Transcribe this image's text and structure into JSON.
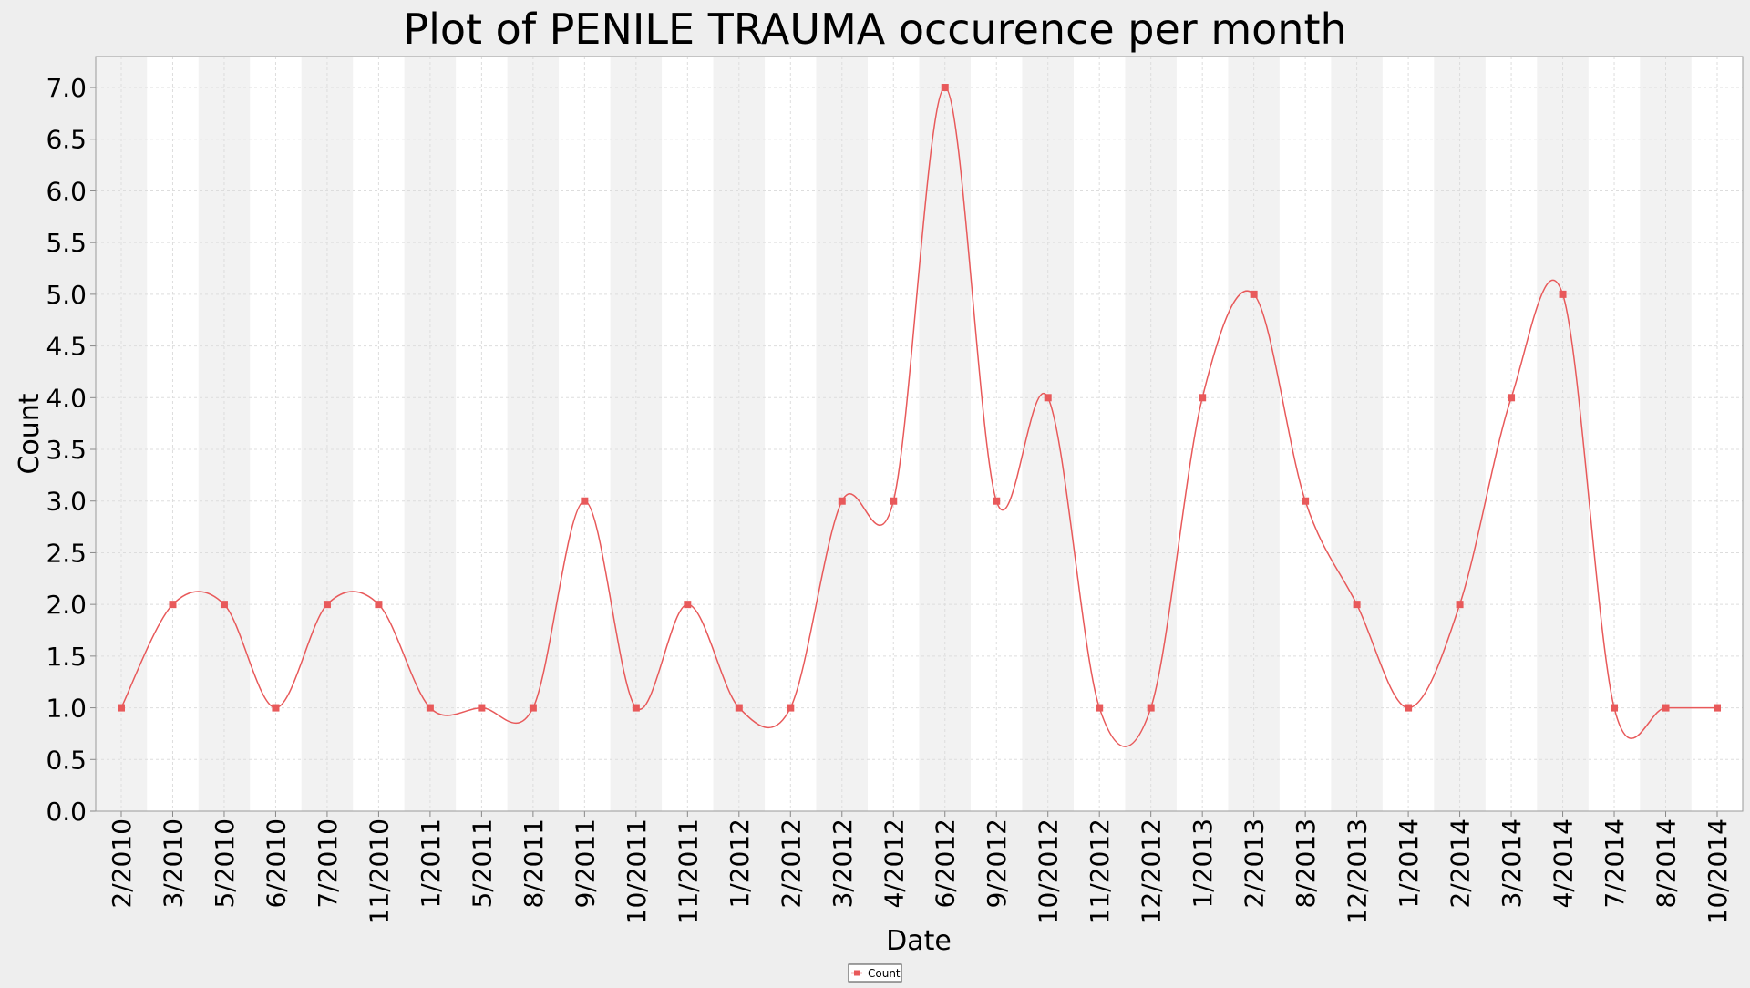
{
  "colors": {
    "background": "#eeeeee",
    "plot_background": "#ffffff",
    "band_shade": "#f2f2f2",
    "grid": "#dddddd",
    "series": "#e8595a",
    "legend_border": "#444444"
  },
  "chart_data": {
    "type": "line",
    "title": "Plot of PENILE TRAUMA occurence per month",
    "xlabel": "Date",
    "ylabel": "Count",
    "ylim": [
      0,
      7.3
    ],
    "yticks": [
      "0.0",
      "0.5",
      "1.0",
      "1.5",
      "2.0",
      "2.5",
      "3.0",
      "3.5",
      "4.0",
      "4.5",
      "5.0",
      "5.5",
      "6.0",
      "6.5",
      "7.0"
    ],
    "grid": true,
    "smoothed": true,
    "legend_position": "bottom-center",
    "categories": [
      "2/2010",
      "3/2010",
      "5/2010",
      "6/2010",
      "7/2010",
      "11/2010",
      "1/2011",
      "5/2011",
      "8/2011",
      "9/2011",
      "10/2011",
      "11/2011",
      "1/2012",
      "2/2012",
      "3/2012",
      "4/2012",
      "6/2012",
      "9/2012",
      "10/2012",
      "11/2012",
      "12/2012",
      "1/2013",
      "2/2013",
      "8/2013",
      "12/2013",
      "1/2014",
      "2/2014",
      "3/2014",
      "4/2014",
      "7/2014",
      "8/2014",
      "10/2014"
    ],
    "series": [
      {
        "name": "Count",
        "color": "#e8595a",
        "values": [
          1,
          2,
          2,
          1,
          2,
          2,
          1,
          1,
          1,
          3,
          1,
          2,
          1,
          1,
          3,
          3,
          7,
          3,
          4,
          1,
          1,
          4,
          5,
          3,
          2,
          1,
          2,
          4,
          5,
          1,
          1,
          1
        ]
      }
    ]
  }
}
